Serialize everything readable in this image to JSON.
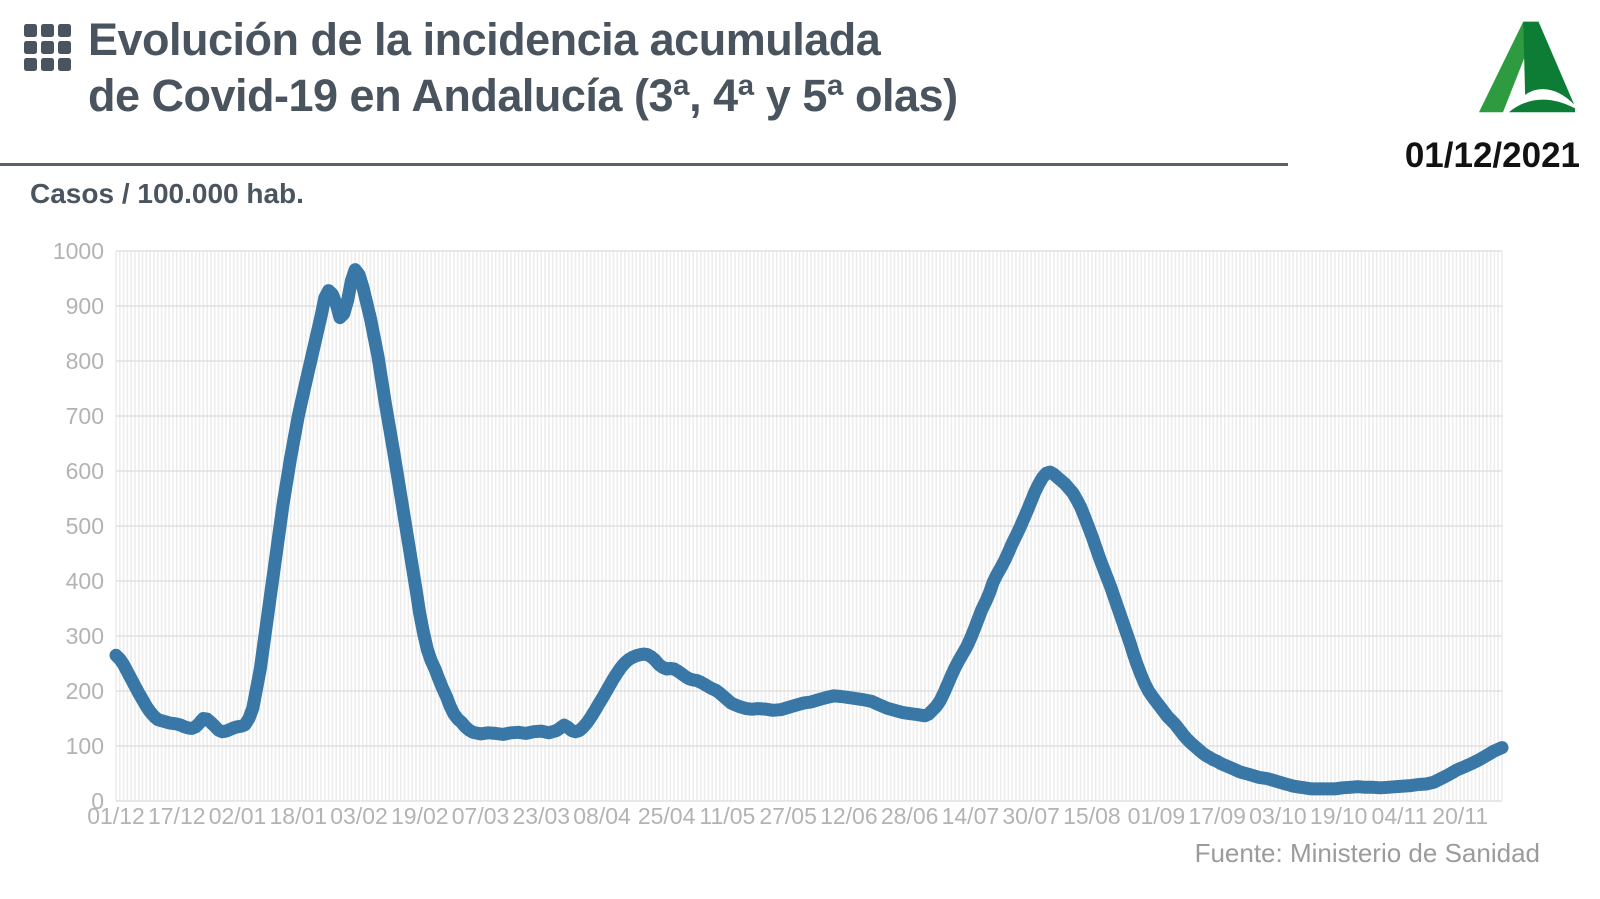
{
  "header": {
    "title_line1": "Evolución de la incidencia acumulada",
    "title_line2": "de Covid-19 en Andalucía (3ª, 4ª y 5ª olas)",
    "date": "01/12/2021",
    "logo": "junta-de-andalucia-a-logo"
  },
  "footer": {
    "source": "Fuente: Ministerio de Sanidad"
  },
  "colors": {
    "title_text": "#4a545e",
    "divider": "#59626a",
    "date_text": "#121212",
    "line": "#3877a6",
    "h_gridline": "#dcdcdc",
    "v_stripe": "#ededed",
    "tick_label": "#b3b3b3",
    "source_text": "#9b9b9b",
    "logo_green_light": "#2f9b40",
    "logo_green_dark": "#0d7d35"
  },
  "chart_data": {
    "type": "line",
    "title": "Evolución de la incidencia acumulada de Covid-19 en Andalucía (3ª, 4ª y 5ª olas)",
    "ylabel": "Casos / 100.000 hab.",
    "xlabel": "",
    "ylim": [
      0,
      1000
    ],
    "y_tick_step": 100,
    "y_tick_labels": [
      "0",
      "100",
      "200",
      "300",
      "400",
      "500",
      "600",
      "700",
      "800",
      "900",
      "1000"
    ],
    "x_span_days": 365,
    "grid": "horizontal gridlines + fine daily vertical stripes, legend none",
    "x_ticks": [
      {
        "day": 0,
        "label": "01/12"
      },
      {
        "day": 16,
        "label": "17/12"
      },
      {
        "day": 32,
        "label": "02/01"
      },
      {
        "day": 48,
        "label": "18/01"
      },
      {
        "day": 64,
        "label": "03/02"
      },
      {
        "day": 80,
        "label": "19/02"
      },
      {
        "day": 96,
        "label": "07/03"
      },
      {
        "day": 112,
        "label": "23/03"
      },
      {
        "day": 128,
        "label": "08/04"
      },
      {
        "day": 145,
        "label": "25/04"
      },
      {
        "day": 161,
        "label": "11/05"
      },
      {
        "day": 177,
        "label": "27/05"
      },
      {
        "day": 193,
        "label": "12/06"
      },
      {
        "day": 209,
        "label": "28/06"
      },
      {
        "day": 225,
        "label": "14/07"
      },
      {
        "day": 241,
        "label": "30/07"
      },
      {
        "day": 257,
        "label": "15/08"
      },
      {
        "day": 274,
        "label": "01/09"
      },
      {
        "day": 290,
        "label": "17/09"
      },
      {
        "day": 306,
        "label": "03/10"
      },
      {
        "day": 322,
        "label": "19/10"
      },
      {
        "day": 338,
        "label": "04/11"
      },
      {
        "day": 354,
        "label": "20/11"
      }
    ],
    "points": [
      [
        0,
        265
      ],
      [
        1,
        258
      ],
      [
        2,
        248
      ],
      [
        3,
        235
      ],
      [
        4,
        222
      ],
      [
        5,
        209
      ],
      [
        6,
        196
      ],
      [
        7,
        184
      ],
      [
        8,
        172
      ],
      [
        9,
        162
      ],
      [
        10,
        154
      ],
      [
        11,
        148
      ],
      [
        12,
        146
      ],
      [
        13,
        144
      ],
      [
        14,
        142
      ],
      [
        15,
        141
      ],
      [
        16,
        140
      ],
      [
        17,
        138
      ],
      [
        18,
        135
      ],
      [
        19,
        133
      ],
      [
        20,
        132
      ],
      [
        21,
        135
      ],
      [
        22,
        142
      ],
      [
        23,
        150
      ],
      [
        24,
        149
      ],
      [
        25,
        143
      ],
      [
        26,
        136
      ],
      [
        27,
        129
      ],
      [
        28,
        126
      ],
      [
        29,
        127
      ],
      [
        30,
        130
      ],
      [
        31,
        133
      ],
      [
        32,
        135
      ],
      [
        33,
        136
      ],
      [
        34,
        139
      ],
      [
        35,
        150
      ],
      [
        36,
        168
      ],
      [
        38,
        240
      ],
      [
        40,
        340
      ],
      [
        42,
        440
      ],
      [
        44,
        540
      ],
      [
        46,
        625
      ],
      [
        48,
        700
      ],
      [
        50,
        762
      ],
      [
        52,
        822
      ],
      [
        54,
        882
      ],
      [
        55,
        915
      ],
      [
        56,
        928
      ],
      [
        57,
        921
      ],
      [
        58,
        904
      ],
      [
        59,
        879
      ],
      [
        60,
        886
      ],
      [
        61,
        910
      ],
      [
        62,
        946
      ],
      [
        63,
        966
      ],
      [
        64,
        957
      ],
      [
        65,
        935
      ],
      [
        67,
        878
      ],
      [
        69,
        808
      ],
      [
        71,
        720
      ],
      [
        73,
        640
      ],
      [
        75,
        555
      ],
      [
        77,
        470
      ],
      [
        79,
        385
      ],
      [
        80,
        340
      ],
      [
        81,
        305
      ],
      [
        82,
        275
      ],
      [
        83,
        255
      ],
      [
        84,
        240
      ],
      [
        85,
        222
      ],
      [
        86,
        205
      ],
      [
        87,
        190
      ],
      [
        88,
        172
      ],
      [
        89,
        158
      ],
      [
        90,
        149
      ],
      [
        91,
        143
      ],
      [
        92,
        135
      ],
      [
        93,
        129
      ],
      [
        94,
        125
      ],
      [
        96,
        122
      ],
      [
        98,
        124
      ],
      [
        100,
        123
      ],
      [
        102,
        121
      ],
      [
        104,
        124
      ],
      [
        106,
        125
      ],
      [
        108,
        123
      ],
      [
        110,
        126
      ],
      [
        112,
        127
      ],
      [
        114,
        124
      ],
      [
        116,
        128
      ],
      [
        117,
        133
      ],
      [
        118,
        138
      ],
      [
        119,
        134
      ],
      [
        120,
        128
      ],
      [
        121,
        126
      ],
      [
        122,
        128
      ],
      [
        123,
        134
      ],
      [
        124,
        142
      ],
      [
        125,
        152
      ],
      [
        126,
        163
      ],
      [
        127,
        175
      ],
      [
        128,
        186
      ],
      [
        129,
        198
      ],
      [
        130,
        210
      ],
      [
        131,
        222
      ],
      [
        132,
        233
      ],
      [
        133,
        243
      ],
      [
        134,
        251
      ],
      [
        135,
        257
      ],
      [
        136,
        261
      ],
      [
        137,
        264
      ],
      [
        138,
        266
      ],
      [
        139,
        267
      ],
      [
        140,
        266
      ],
      [
        141,
        262
      ],
      [
        142,
        256
      ],
      [
        143,
        248
      ],
      [
        144,
        243
      ],
      [
        145,
        240
      ],
      [
        146,
        241
      ],
      [
        147,
        240
      ],
      [
        148,
        236
      ],
      [
        149,
        231
      ],
      [
        150,
        226
      ],
      [
        151,
        222
      ],
      [
        152,
        220
      ],
      [
        153,
        219
      ],
      [
        154,
        216
      ],
      [
        155,
        212
      ],
      [
        156,
        208
      ],
      [
        157,
        204
      ],
      [
        158,
        201
      ],
      [
        159,
        196
      ],
      [
        160,
        190
      ],
      [
        161,
        184
      ],
      [
        162,
        178
      ],
      [
        163,
        175
      ],
      [
        164,
        172
      ],
      [
        165,
        170
      ],
      [
        166,
        168
      ],
      [
        167,
        167
      ],
      [
        168,
        167
      ],
      [
        169,
        168
      ],
      [
        171,
        167
      ],
      [
        173,
        165
      ],
      [
        175,
        166
      ],
      [
        177,
        170
      ],
      [
        179,
        174
      ],
      [
        181,
        178
      ],
      [
        183,
        180
      ],
      [
        185,
        184
      ],
      [
        187,
        188
      ],
      [
        189,
        191
      ],
      [
        191,
        190
      ],
      [
        193,
        188
      ],
      [
        195,
        186
      ],
      [
        197,
        184
      ],
      [
        199,
        181
      ],
      [
        201,
        175
      ],
      [
        203,
        169
      ],
      [
        205,
        165
      ],
      [
        207,
        161
      ],
      [
        209,
        159
      ],
      [
        211,
        157
      ],
      [
        213,
        155
      ],
      [
        214,
        158
      ],
      [
        215,
        165
      ],
      [
        216,
        172
      ],
      [
        217,
        182
      ],
      [
        218,
        196
      ],
      [
        219,
        212
      ],
      [
        220,
        228
      ],
      [
        221,
        243
      ],
      [
        222,
        256
      ],
      [
        223,
        268
      ],
      [
        224,
        280
      ],
      [
        225,
        295
      ],
      [
        226,
        312
      ],
      [
        227,
        330
      ],
      [
        228,
        348
      ],
      [
        229,
        362
      ],
      [
        230,
        378
      ],
      [
        231,
        398
      ],
      [
        232,
        412
      ],
      [
        233,
        424
      ],
      [
        234,
        437
      ],
      [
        235,
        452
      ],
      [
        236,
        468
      ],
      [
        237,
        482
      ],
      [
        238,
        496
      ],
      [
        239,
        512
      ],
      [
        240,
        528
      ],
      [
        241,
        545
      ],
      [
        242,
        562
      ],
      [
        243,
        576
      ],
      [
        244,
        588
      ],
      [
        245,
        596
      ],
      [
        246,
        598
      ],
      [
        247,
        594
      ],
      [
        248,
        588
      ],
      [
        249,
        582
      ],
      [
        250,
        576
      ],
      [
        251,
        568
      ],
      [
        252,
        560
      ],
      [
        253,
        548
      ],
      [
        254,
        535
      ],
      [
        255,
        518
      ],
      [
        256,
        500
      ],
      [
        257,
        482
      ],
      [
        258,
        462
      ],
      [
        259,
        442
      ],
      [
        260,
        424
      ],
      [
        261,
        406
      ],
      [
        262,
        388
      ],
      [
        263,
        368
      ],
      [
        264,
        348
      ],
      [
        265,
        328
      ],
      [
        266,
        308
      ],
      [
        267,
        288
      ],
      [
        268,
        266
      ],
      [
        269,
        246
      ],
      [
        270,
        228
      ],
      [
        271,
        212
      ],
      [
        272,
        199
      ],
      [
        273,
        189
      ],
      [
        274,
        180
      ],
      [
        275,
        171
      ],
      [
        276,
        162
      ],
      [
        277,
        153
      ],
      [
        278,
        146
      ],
      [
        279,
        139
      ],
      [
        280,
        130
      ],
      [
        281,
        121
      ],
      [
        282,
        113
      ],
      [
        283,
        106
      ],
      [
        284,
        100
      ],
      [
        285,
        94
      ],
      [
        286,
        88
      ],
      [
        287,
        83
      ],
      [
        288,
        79
      ],
      [
        289,
        75
      ],
      [
        290,
        72
      ],
      [
        291,
        68
      ],
      [
        292,
        65
      ],
      [
        293,
        62
      ],
      [
        294,
        59
      ],
      [
        295,
        56
      ],
      [
        296,
        53
      ],
      [
        297,
        51
      ],
      [
        298,
        49
      ],
      [
        299,
        47
      ],
      [
        300,
        45
      ],
      [
        301,
        43
      ],
      [
        302,
        42
      ],
      [
        303,
        41
      ],
      [
        304,
        39
      ],
      [
        305,
        37
      ],
      [
        306,
        35
      ],
      [
        307,
        33
      ],
      [
        308,
        31
      ],
      [
        309,
        29
      ],
      [
        310,
        27
      ],
      [
        311,
        26
      ],
      [
        312,
        25
      ],
      [
        313,
        24
      ],
      [
        314,
        23
      ],
      [
        315,
        22
      ],
      [
        317,
        22
      ],
      [
        319,
        22
      ],
      [
        321,
        22
      ],
      [
        323,
        24
      ],
      [
        325,
        25
      ],
      [
        327,
        26
      ],
      [
        329,
        25
      ],
      [
        331,
        25
      ],
      [
        333,
        24
      ],
      [
        335,
        25
      ],
      [
        337,
        26
      ],
      [
        339,
        27
      ],
      [
        341,
        28
      ],
      [
        343,
        30
      ],
      [
        345,
        31
      ],
      [
        347,
        34
      ],
      [
        349,
        41
      ],
      [
        351,
        48
      ],
      [
        353,
        56
      ],
      [
        355,
        62
      ],
      [
        357,
        68
      ],
      [
        359,
        75
      ],
      [
        361,
        83
      ],
      [
        363,
        91
      ],
      [
        365,
        97
      ]
    ]
  }
}
